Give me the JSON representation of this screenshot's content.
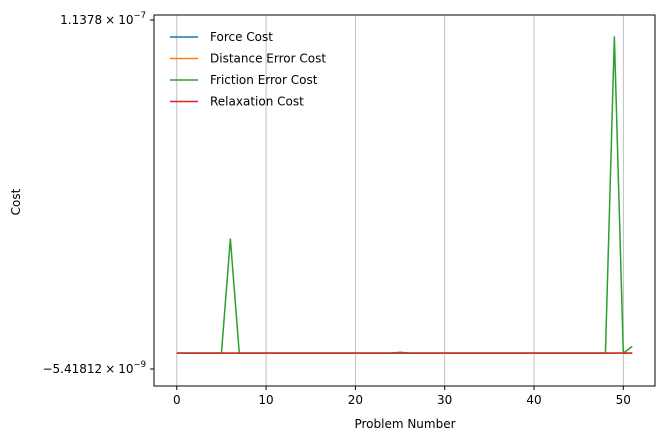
{
  "chart_data": {
    "type": "line",
    "xlabel": "Problem Number",
    "ylabel": "Cost",
    "xlim": [
      -2.55,
      53.55
    ],
    "ylim": [
      -5.41812e-09,
      1.1378e-07
    ],
    "x_ticks": [
      0,
      10,
      20,
      30,
      40,
      50
    ],
    "y_tick_labels": {
      "top": {
        "base": "1.1378",
        "times": "×",
        "exp_base": "10",
        "exp": "−7"
      },
      "bottom": {
        "base": "−5.41812",
        "times": "×",
        "exp_base": "10",
        "exp": "−9"
      }
    },
    "grid": "vertical",
    "legend_position": "upper-left",
    "x": [
      0,
      1,
      2,
      3,
      4,
      5,
      6,
      7,
      8,
      9,
      10,
      11,
      12,
      13,
      14,
      15,
      16,
      17,
      18,
      19,
      20,
      21,
      22,
      23,
      24,
      25,
      26,
      27,
      28,
      29,
      30,
      31,
      32,
      33,
      34,
      35,
      36,
      37,
      38,
      39,
      40,
      41,
      42,
      43,
      44,
      45,
      46,
      47,
      48,
      49,
      50,
      51
    ],
    "series": [
      {
        "name": "Force Cost",
        "color": "#1f77b4",
        "values": [
          0,
          0,
          0,
          0,
          0,
          0,
          0,
          0,
          0,
          0,
          0,
          0,
          0,
          0,
          0,
          0,
          0,
          0,
          0,
          0,
          0,
          0,
          0,
          0,
          0,
          0,
          0,
          0,
          0,
          0,
          0,
          0,
          0,
          0,
          0,
          0,
          0,
          0,
          0,
          0,
          0,
          0,
          0,
          0,
          0,
          0,
          0,
          0,
          0,
          0,
          0,
          0
        ]
      },
      {
        "name": "Distance Error Cost",
        "color": "#ff7f0e",
        "values": [
          0,
          0,
          0,
          0,
          0,
          0,
          0,
          0,
          0,
          0,
          0,
          0,
          0,
          0,
          0,
          0,
          0,
          0,
          0,
          0,
          0,
          0,
          0,
          0,
          0,
          0,
          0,
          0,
          0,
          0,
          0,
          0,
          0,
          0,
          0,
          0,
          0,
          0,
          0,
          0,
          0,
          0,
          0,
          0,
          0,
          0,
          0,
          0,
          0,
          0,
          0,
          0
        ]
      },
      {
        "name": "Friction Error Cost",
        "color": "#2ca02c",
        "values": [
          0,
          0,
          0,
          0,
          0,
          0,
          3.9e-08,
          0,
          0,
          0,
          0,
          0,
          0,
          0,
          0,
          0,
          0,
          0,
          0,
          0,
          0,
          0,
          0,
          0,
          0,
          3e-10,
          0,
          0,
          0,
          0,
          0,
          0,
          0,
          0,
          0,
          0,
          0,
          0,
          0,
          0,
          0,
          0,
          0,
          0,
          0,
          0,
          0,
          0,
          0,
          1.08e-07,
          0,
          2.3e-09
        ]
      },
      {
        "name": "Relaxation Cost",
        "color": "#d62728",
        "values": [
          0,
          0,
          0,
          0,
          0,
          0,
          0,
          0,
          0,
          0,
          0,
          0,
          0,
          0,
          0,
          0,
          0,
          0,
          0,
          0,
          0,
          0,
          0,
          0,
          0,
          0,
          0,
          0,
          0,
          0,
          0,
          0,
          0,
          0,
          0,
          0,
          0,
          0,
          0,
          0,
          0,
          0,
          0,
          0,
          0,
          0,
          0,
          0,
          0,
          0,
          0,
          0
        ]
      }
    ]
  }
}
